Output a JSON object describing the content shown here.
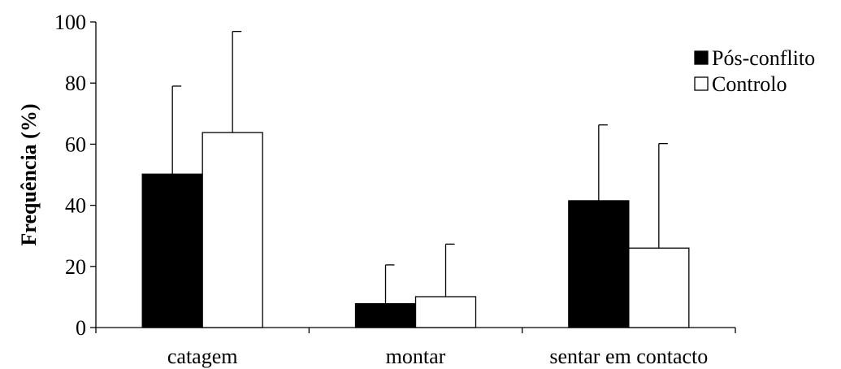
{
  "chart_data": {
    "type": "bar",
    "title": "",
    "xlabel": "",
    "ylabel": "Frequência (%)",
    "ylim": [
      0,
      100
    ],
    "yticks": [
      0,
      20,
      40,
      60,
      80,
      100
    ],
    "categories": [
      "catagem",
      "montar",
      "sentar em contacto"
    ],
    "series": [
      {
        "name": "Pós-conflito",
        "color": "#000000",
        "values": [
          50.2,
          7.8,
          41.5
        ],
        "error_upper": [
          79.0,
          20.5,
          66.3
        ]
      },
      {
        "name": "Controlo",
        "color": "#ffffff",
        "values": [
          63.8,
          10.1,
          26.0
        ],
        "error_upper": [
          96.9,
          27.3,
          60.2
        ]
      }
    ],
    "legend_position": "top-right",
    "grid": false,
    "error_bars": "upper-only"
  }
}
